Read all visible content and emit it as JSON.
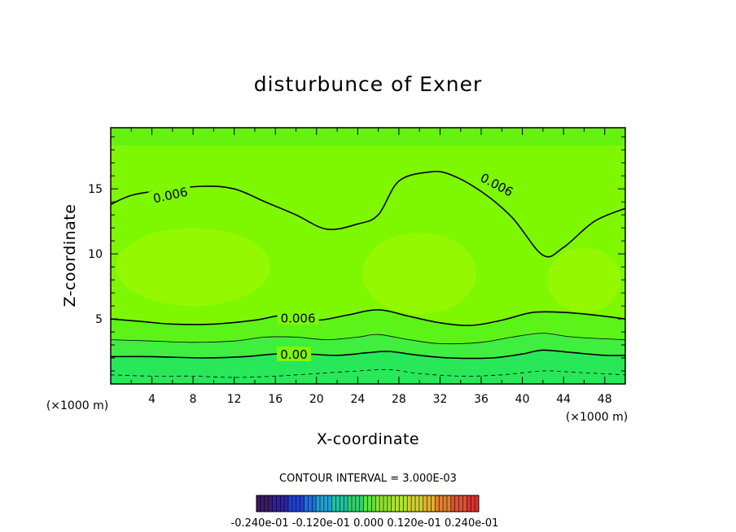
{
  "chart_data": {
    "type": "contour",
    "title": "disturbunce of Exner",
    "xlabel": "X-coordinate",
    "ylabel": "Z-coordinate",
    "x_unit": "(×1000 m)",
    "y_unit": "(×1000 m)",
    "xlim": [
      0,
      50
    ],
    "ylim": [
      0,
      19.7
    ],
    "x_ticks": [
      4,
      8,
      12,
      16,
      20,
      24,
      28,
      32,
      36,
      40,
      44,
      48
    ],
    "x_tick_labels": [
      "4",
      "8",
      "12",
      "16",
      "20",
      "24",
      "28",
      "32",
      "36",
      "40",
      "44",
      "48"
    ],
    "y_ticks": [
      5,
      10,
      15
    ],
    "y_tick_labels": [
      "5",
      "10",
      "15"
    ],
    "contour_interval_text": "CONTOUR INTERVAL = 3.000E-03",
    "colorbar_labels_text": "-0.240e-01 -0.120e-01 0.000 0.120e-01 0.240e-01",
    "colorbar_colors": [
      "#3a1a6a",
      "#3020a0",
      "#2040d0",
      "#2070e0",
      "#20a0d0",
      "#20c0a0",
      "#30d070",
      "#60e040",
      "#90e030",
      "#b0e030",
      "#d0d030",
      "#e0b030",
      "#e08030",
      "#e05030",
      "#e03030"
    ],
    "fill_colors": {
      "bottom": "#28e85a",
      "low": "#40ee40",
      "mid": "#5cf418",
      "high": "#7ef800",
      "top_band": "#66f210",
      "core": "#9cfa00"
    },
    "contours": [
      {
        "label": "0.006",
        "style": "solid",
        "width": 1.6,
        "x": [
          0,
          2,
          5,
          9,
          12,
          15,
          18,
          21,
          24,
          26,
          28,
          31,
          33,
          36,
          39,
          42,
          44,
          47,
          50
        ],
        "y": [
          13.8,
          14.5,
          14.9,
          15.2,
          15.0,
          14.0,
          13.0,
          11.9,
          12.3,
          13.0,
          15.6,
          16.3,
          16.1,
          14.8,
          12.8,
          9.9,
          10.5,
          12.5,
          13.5
        ],
        "label_positions": [
          [
            5.8,
            14.5,
            -12
          ],
          [
            37.5,
            15.3,
            28
          ]
        ]
      },
      {
        "label": "0.006",
        "style": "solid",
        "width": 1.6,
        "x": [
          0,
          3,
          6,
          10,
          14,
          17,
          20,
          23,
          26,
          29,
          32,
          35,
          38,
          41,
          44,
          47,
          50
        ],
        "y": [
          5.0,
          4.8,
          4.6,
          4.6,
          4.9,
          5.3,
          4.9,
          5.3,
          5.7,
          5.2,
          4.7,
          4.5,
          4.9,
          5.5,
          5.5,
          5.3,
          5.0
        ],
        "label_positions": [
          [
            18.2,
            5.05,
            0
          ]
        ]
      },
      {
        "label": "",
        "style": "solid",
        "width": 0.8,
        "x": [
          0,
          4,
          8,
          12,
          15,
          18,
          21,
          24,
          26,
          29,
          32,
          36,
          39,
          42,
          45,
          50
        ],
        "y": [
          3.4,
          3.3,
          3.2,
          3.3,
          3.6,
          3.6,
          3.4,
          3.6,
          3.8,
          3.4,
          3.1,
          3.2,
          3.6,
          3.9,
          3.6,
          3.4
        ],
        "label_positions": []
      },
      {
        "label": "0.00",
        "style": "solid",
        "width": 1.6,
        "x": [
          0,
          4,
          9,
          13,
          16,
          19,
          22,
          25,
          27,
          30,
          33,
          37,
          40,
          42,
          45,
          48,
          50
        ],
        "y": [
          2.1,
          2.1,
          2.0,
          2.1,
          2.3,
          2.3,
          2.2,
          2.4,
          2.5,
          2.2,
          2.0,
          2.0,
          2.3,
          2.6,
          2.4,
          2.2,
          2.2
        ],
        "label_positions": [
          [
            17.8,
            2.25,
            0
          ]
        ]
      },
      {
        "label": "",
        "style": "dashed",
        "width": 0.8,
        "x": [
          0,
          4,
          8,
          12,
          16,
          20,
          24,
          27,
          30,
          34,
          38,
          42,
          45,
          50
        ],
        "y": [
          0.7,
          0.6,
          0.6,
          0.5,
          0.6,
          0.8,
          1.0,
          1.1,
          0.8,
          0.6,
          0.7,
          1.0,
          0.9,
          0.7
        ],
        "label_positions": []
      }
    ]
  }
}
